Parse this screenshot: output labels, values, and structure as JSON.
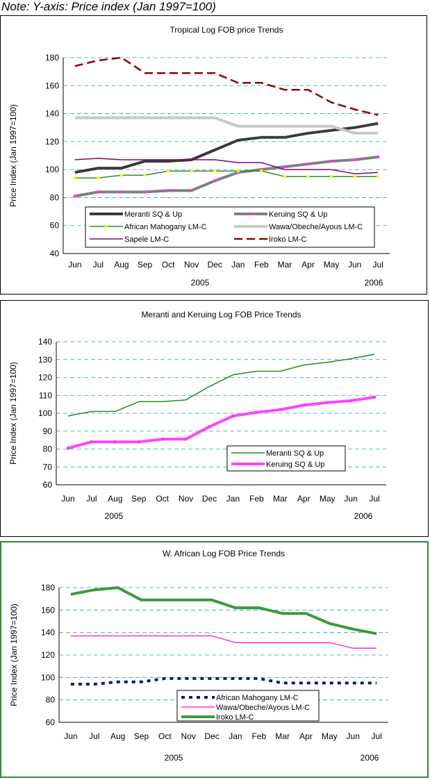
{
  "note": "Note: Y-axis: Price index (Jan 1997=100)",
  "chart_data": [
    {
      "type": "line",
      "title": "Tropical Log FOB price Trends",
      "ylabel": "Price Index (Jan 1997=100)",
      "xlabel": "",
      "ylim": [
        40,
        180
      ],
      "yticks": [
        40,
        60,
        80,
        100,
        120,
        140,
        160,
        180
      ],
      "grid": true,
      "categories": [
        "Jun",
        "Jul",
        "Aug",
        "Sep",
        "Oct",
        "Nov",
        "Dec",
        "Jan",
        "Feb",
        "Mar",
        "Apr",
        "May",
        "Jun",
        "Jul"
      ],
      "year_labels": [
        "2005",
        "2006"
      ],
      "legend": "bottom-center",
      "series": [
        {
          "name": "Meranti SQ & Up",
          "color": "#3a3a3a",
          "values": [
            98,
            101,
            101,
            106,
            106,
            107,
            114,
            121,
            123,
            123,
            126,
            128,
            130,
            133
          ]
        },
        {
          "name": "Keruing SQ & Up",
          "color": "#808080",
          "values": [
            81,
            84,
            84,
            84,
            85,
            85,
            92,
            98,
            100,
            102,
            104,
            106,
            107,
            109
          ]
        },
        {
          "name": "African Mahogany LM-C",
          "color": "#2e8b2e",
          "values": [
            94,
            94,
            96,
            96,
            99,
            99,
            99,
            99,
            99,
            95,
            95,
            95,
            95,
            95
          ]
        },
        {
          "name": "Wawa/Obeche/Ayous LM-C",
          "color": "#c8c8c8",
          "values": [
            137,
            137,
            137,
            137,
            137,
            137,
            137,
            131,
            131,
            131,
            131,
            131,
            126,
            126
          ]
        },
        {
          "name": "Sapele LM-C",
          "color": "#800080",
          "values": [
            107,
            108,
            107,
            107,
            107,
            107,
            107,
            105,
            105,
            100,
            100,
            100,
            97,
            98
          ]
        },
        {
          "name": "Iroko LM-C",
          "color": "#8b0000",
          "values": [
            174,
            178,
            180,
            169,
            169,
            169,
            169,
            162,
            162,
            157,
            157,
            148,
            143,
            139
          ]
        }
      ]
    },
    {
      "type": "line",
      "title": "Meranti and Keruing Log FOB Price Trends",
      "ylabel": "Price Index (Jan 1997=100)",
      "xlabel": "",
      "ylim": [
        60,
        140
      ],
      "yticks": [
        60,
        70,
        80,
        90,
        100,
        110,
        120,
        130,
        140
      ],
      "grid": true,
      "categories": [
        "Jun",
        "Jul",
        "Aug",
        "Sep",
        "Oct",
        "Nov",
        "Dec",
        "Jan",
        "Feb",
        "Mar",
        "Apr",
        "May",
        "Jun",
        "Jul"
      ],
      "year_labels": [
        "2005",
        "2006"
      ],
      "legend": "bottom-right",
      "series": [
        {
          "name": "Meranti SQ & Up",
          "color": "#228b22",
          "values": [
            98.5,
            101,
            101,
            106.5,
            106.5,
            107.5,
            115,
            121.5,
            123.5,
            123.5,
            127,
            128.5,
            130.5,
            133
          ]
        },
        {
          "name": "Keruing SQ & Up",
          "color": "#ff44ff",
          "values": [
            80.5,
            84,
            84,
            84,
            85.5,
            85.5,
            92.5,
            98.5,
            100.5,
            102,
            104.5,
            106,
            107,
            109
          ]
        }
      ]
    },
    {
      "type": "line",
      "title": "W. African Log FOB Price Trends",
      "ylabel": "Price Index (Jan 1997=100)",
      "xlabel": "",
      "ylim": [
        60,
        180
      ],
      "yticks": [
        60,
        80,
        100,
        120,
        140,
        160,
        180
      ],
      "grid": true,
      "categories": [
        "Jun",
        "Jul",
        "Aug",
        "Sep",
        "Oct",
        "Nov",
        "Dec",
        "Jan",
        "Feb",
        "Mar",
        "Apr",
        "May",
        "Jun",
        "Jul"
      ],
      "year_labels": [
        "2005",
        "2006"
      ],
      "legend": "bottom-center",
      "series": [
        {
          "name": "African Mahogany LM-C",
          "color": "#0a1e6e",
          "values": [
            94,
            94,
            96,
            96,
            99,
            99,
            99,
            99,
            99,
            95,
            95,
            95,
            95,
            95
          ]
        },
        {
          "name": "Wawa/Obeche/Ayous LM-C",
          "color": "#ff33cc",
          "values": [
            137,
            137,
            137,
            137,
            137,
            137,
            137,
            131,
            131,
            131,
            131,
            131,
            126,
            126
          ]
        },
        {
          "name": "Iroko LM-C",
          "color": "#3a9a3a",
          "values": [
            174,
            178,
            180,
            169,
            169,
            169,
            169,
            162,
            162,
            157,
            157,
            148,
            143,
            139
          ]
        }
      ]
    }
  ]
}
